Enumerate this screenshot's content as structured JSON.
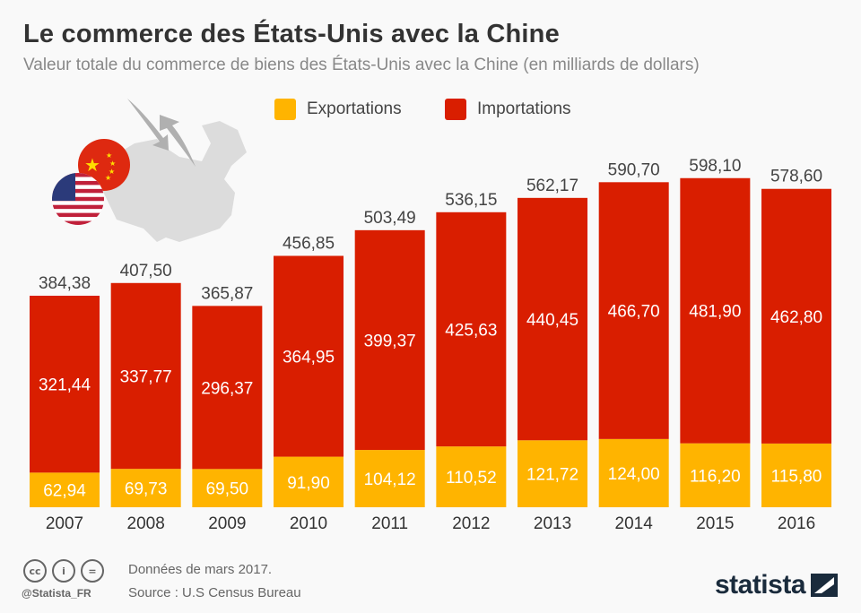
{
  "header": {
    "title": "Le commerce des États-Unis avec la Chine",
    "subtitle": "Valeur totale du commerce de biens des États-Unis avec la Chine (en milliards de dollars)"
  },
  "footer": {
    "note": "Données de mars 2017.",
    "source": "Source : U.S Census Bureau",
    "handle": "@Statista_FR",
    "brand": "statista"
  },
  "icons": [
    "cc-icon",
    "by-icon",
    "nd-icon",
    "us-flag-icon",
    "china-flag-icon",
    "china-map-icon",
    "trade-arrows-icon"
  ],
  "chart_data": {
    "type": "bar",
    "stacked": true,
    "title": "Le commerce des États-Unis avec la Chine",
    "subtitle": "Valeur totale du commerce de biens des États-Unis avec la Chine (en milliards de dollars)",
    "categories": [
      "2007",
      "2008",
      "2009",
      "2010",
      "2011",
      "2012",
      "2013",
      "2014",
      "2015",
      "2016"
    ],
    "series": [
      {
        "name": "Exportations",
        "color": "#ffb400",
        "values": [
          62.94,
          69.73,
          69.5,
          91.9,
          104.12,
          110.52,
          121.72,
          124.0,
          116.2,
          115.8
        ],
        "labels": [
          "62,94",
          "69,73",
          "69,50",
          "91,90",
          "104,12",
          "110,52",
          "121,72",
          "124,00",
          "116,20",
          "115,80"
        ]
      },
      {
        "name": "Importations",
        "color": "#d91e00",
        "values": [
          321.44,
          337.77,
          296.37,
          364.95,
          399.37,
          425.63,
          440.45,
          466.7,
          481.9,
          462.8
        ],
        "labels": [
          "321,44",
          "337,77",
          "296,37",
          "364,95",
          "399,37",
          "425,63",
          "440,45",
          "466,70",
          "481,90",
          "462,80"
        ]
      }
    ],
    "totals": [
      "384,38",
      "407,50",
      "365,87",
      "456,85",
      "503,49",
      "536,15",
      "562,17",
      "590,70",
      "598,10",
      "578,60"
    ],
    "legend": "top",
    "grid": false
  }
}
